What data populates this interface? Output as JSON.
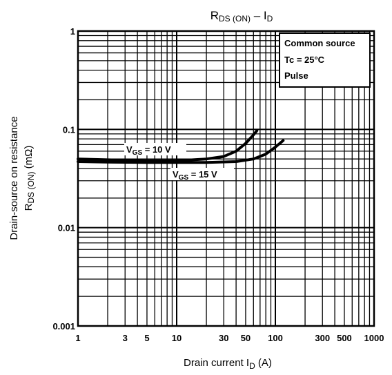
{
  "chart_data": {
    "type": "line",
    "title": {
      "main": "R",
      "sub1": "DS (ON)",
      "dash": " – I",
      "sub2": "D"
    },
    "xlabel": {
      "main": "Drain current   I",
      "sub": "D",
      "unit": "   (A)"
    },
    "ylabel": {
      "line1": "Drain-source on resistance",
      "line2_main": "R",
      "line2_sub": "DS (ON)",
      "line2_unit": "   (mΩ)"
    },
    "x_scale": "log",
    "y_scale": "log",
    "xlim": [
      1,
      1000
    ],
    "ylim": [
      0.001,
      1
    ],
    "grid": true,
    "x_ticks": [
      {
        "value": 1,
        "label": "1"
      },
      {
        "value": 3,
        "label": "3"
      },
      {
        "value": 5,
        "label": "5"
      },
      {
        "value": 10,
        "label": "10"
      },
      {
        "value": 30,
        "label": "30"
      },
      {
        "value": 50,
        "label": "50"
      },
      {
        "value": 100,
        "label": "100"
      },
      {
        "value": 300,
        "label": "300"
      },
      {
        "value": 500,
        "label": "500"
      },
      {
        "value": 1000,
        "label": "1000"
      }
    ],
    "y_ticks": [
      {
        "value": 1,
        "label": "1"
      },
      {
        "value": 0.1,
        "label": "0.1"
      },
      {
        "value": 0.01,
        "label": "0.01"
      },
      {
        "value": 0.001,
        "label": "0.001"
      }
    ],
    "legend": {
      "placement": "top-right",
      "lines": [
        "Common source",
        "Tc = 25°C",
        "Pulse"
      ]
    },
    "series": [
      {
        "label_main": "V",
        "label_sub": "GS",
        "label_rest": " = 10 V",
        "x": [
          1,
          2,
          5,
          10,
          20,
          30,
          40,
          50,
          60,
          65
        ],
        "y": [
          0.05,
          0.049,
          0.048,
          0.048,
          0.05,
          0.053,
          0.06,
          0.072,
          0.088,
          0.097
        ]
      },
      {
        "label_main": "V",
        "label_sub": "GS",
        "label_rest": " = 15 V",
        "x": [
          1,
          2,
          5,
          10,
          20,
          40,
          60,
          80,
          100,
          120
        ],
        "y": [
          0.047,
          0.0465,
          0.046,
          0.046,
          0.046,
          0.047,
          0.05,
          0.056,
          0.066,
          0.077
        ]
      }
    ]
  }
}
